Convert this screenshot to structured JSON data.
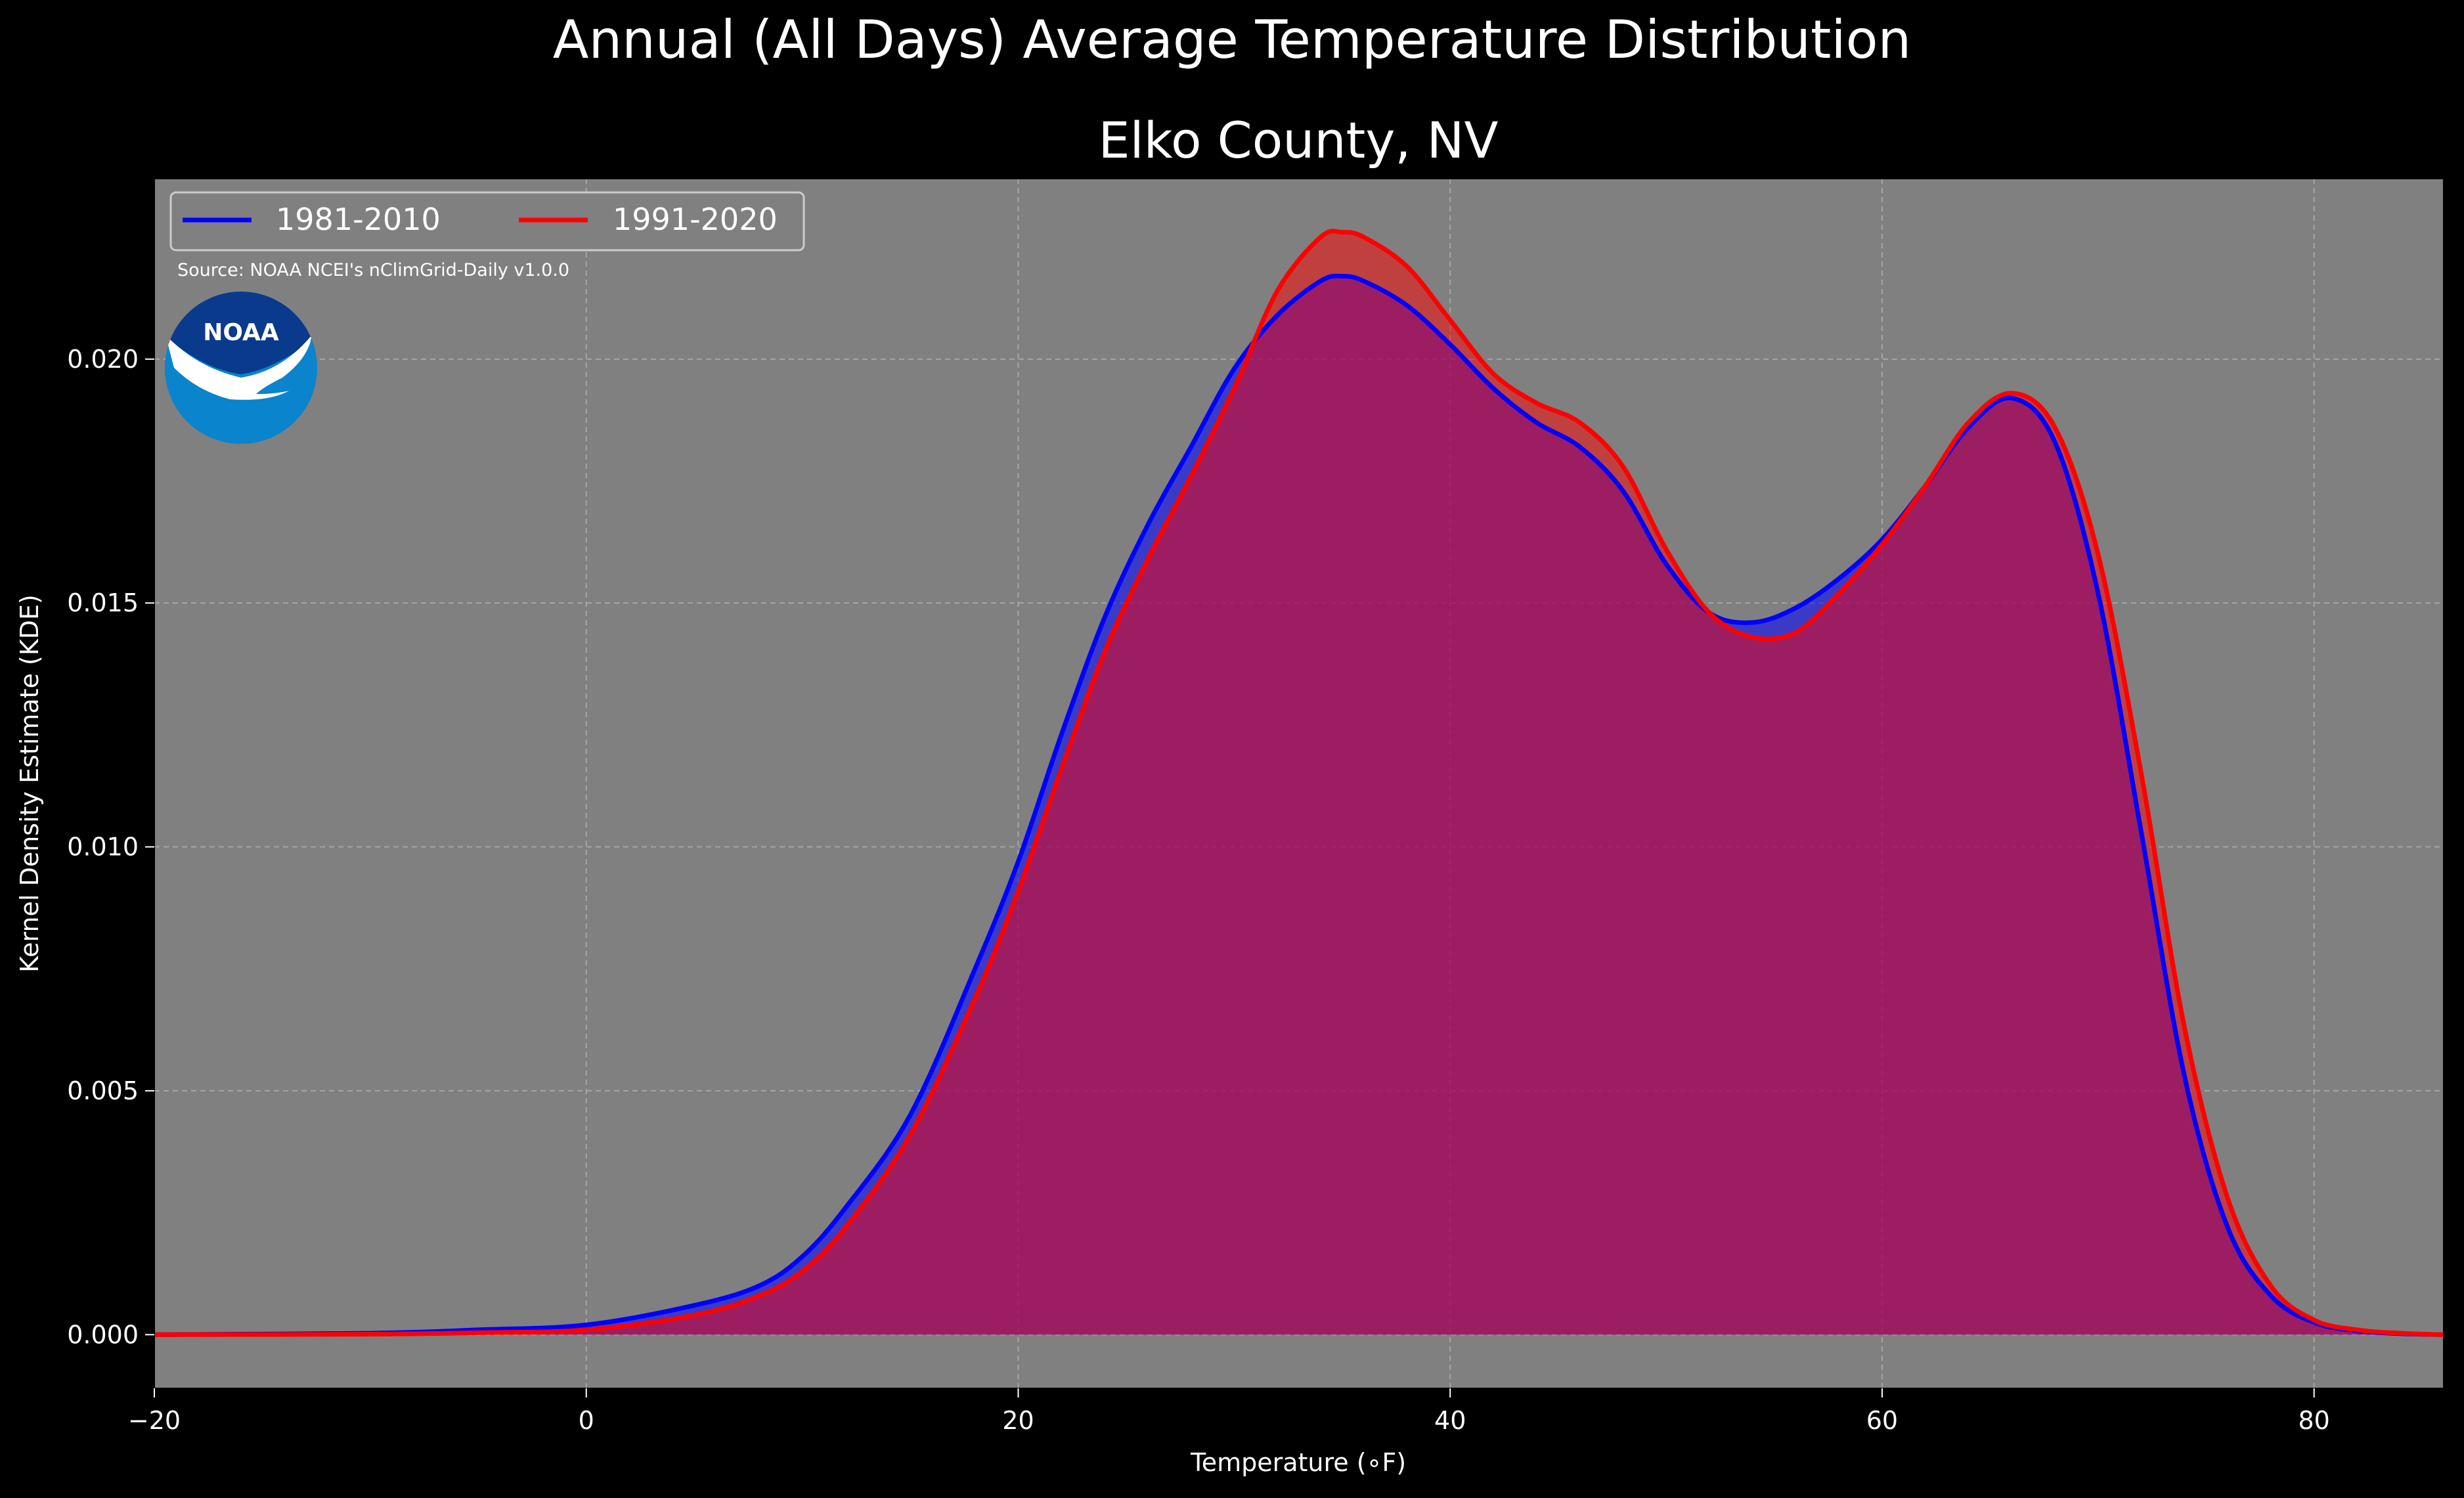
{
  "figure": {
    "suptitle": "Annual (All Days) Average Temperature Distribution",
    "title": "Elko County, NV",
    "source": "Source: NOAA NCEI's nClimGrid-Daily v1.0.0",
    "logo_text": "NOAA"
  },
  "colors": {
    "background": "#000000",
    "plot_bg": "#808080",
    "series_1981": "#0000ff",
    "series_1991": "#ff0000",
    "overlap_fill": "#9e1f5c",
    "noaa_dark": "#0a3a8c",
    "noaa_light": "#0a84cc"
  },
  "chart_data": {
    "type": "area",
    "xlabel": "Temperature (∘F)",
    "ylabel": "Kernel Density Estimate (KDE)",
    "xlim": [
      -20,
      86
    ],
    "ylim": [
      -0.0011,
      0.0237
    ],
    "xticks": [
      -20,
      0,
      20,
      40,
      60,
      80
    ],
    "xtick_labels": [
      "−20",
      "0",
      "20",
      "40",
      "60",
      "80"
    ],
    "yticks": [
      0.0,
      0.005,
      0.01,
      0.015,
      0.02
    ],
    "ytick_labels": [
      "0.000",
      "0.005",
      "0.010",
      "0.015",
      "0.020"
    ],
    "grid": true,
    "legend_position": "top-left",
    "series": [
      {
        "name": "1981-2010",
        "color": "#0000ff",
        "x": [
          -20,
          -10,
          -5,
          0,
          5,
          8,
          10,
          12,
          15,
          18,
          20,
          22,
          24,
          26,
          28,
          30,
          32,
          34,
          35,
          36,
          38,
          40,
          42,
          44,
          46,
          48,
          50,
          52,
          54,
          56,
          58,
          60,
          62,
          64,
          66,
          68,
          70,
          72,
          74,
          76,
          78,
          80,
          82,
          84,
          86
        ],
        "y": [
          0.0,
          3e-05,
          0.0001,
          0.0002,
          0.0006,
          0.001,
          0.0016,
          0.0026,
          0.0045,
          0.0075,
          0.0097,
          0.0123,
          0.0147,
          0.0166,
          0.0182,
          0.0198,
          0.0209,
          0.0216,
          0.0217,
          0.0216,
          0.0211,
          0.0203,
          0.0194,
          0.0187,
          0.0182,
          0.0173,
          0.0158,
          0.0148,
          0.0146,
          0.0149,
          0.0155,
          0.0163,
          0.0174,
          0.0186,
          0.0192,
          0.0183,
          0.0152,
          0.0103,
          0.0053,
          0.0022,
          0.0008,
          0.00025,
          8e-05,
          2e-05,
          0.0
        ]
      },
      {
        "name": "1991-2020",
        "color": "#ff0000",
        "x": [
          -20,
          -10,
          -5,
          0,
          5,
          8,
          10,
          12,
          15,
          18,
          20,
          22,
          24,
          26,
          28,
          30,
          32,
          34,
          35,
          36,
          38,
          40,
          42,
          44,
          46,
          48,
          50,
          52,
          54,
          56,
          58,
          60,
          62,
          64,
          66,
          68,
          70,
          72,
          74,
          76,
          78,
          80,
          82,
          84,
          86
        ],
        "y": [
          0.0,
          1e-05,
          4e-05,
          0.0001,
          0.0004,
          0.0008,
          0.0013,
          0.0022,
          0.0041,
          0.0069,
          0.0091,
          0.0116,
          0.014,
          0.0159,
          0.0176,
          0.0194,
          0.0214,
          0.0225,
          0.0226,
          0.0225,
          0.0219,
          0.0208,
          0.0197,
          0.0191,
          0.0187,
          0.0178,
          0.0161,
          0.0148,
          0.0143,
          0.0144,
          0.0152,
          0.0162,
          0.0174,
          0.0187,
          0.0193,
          0.0186,
          0.016,
          0.0115,
          0.0063,
          0.0028,
          0.001,
          0.0003,
          0.0001,
          3e-05,
          0.0
        ]
      }
    ]
  }
}
